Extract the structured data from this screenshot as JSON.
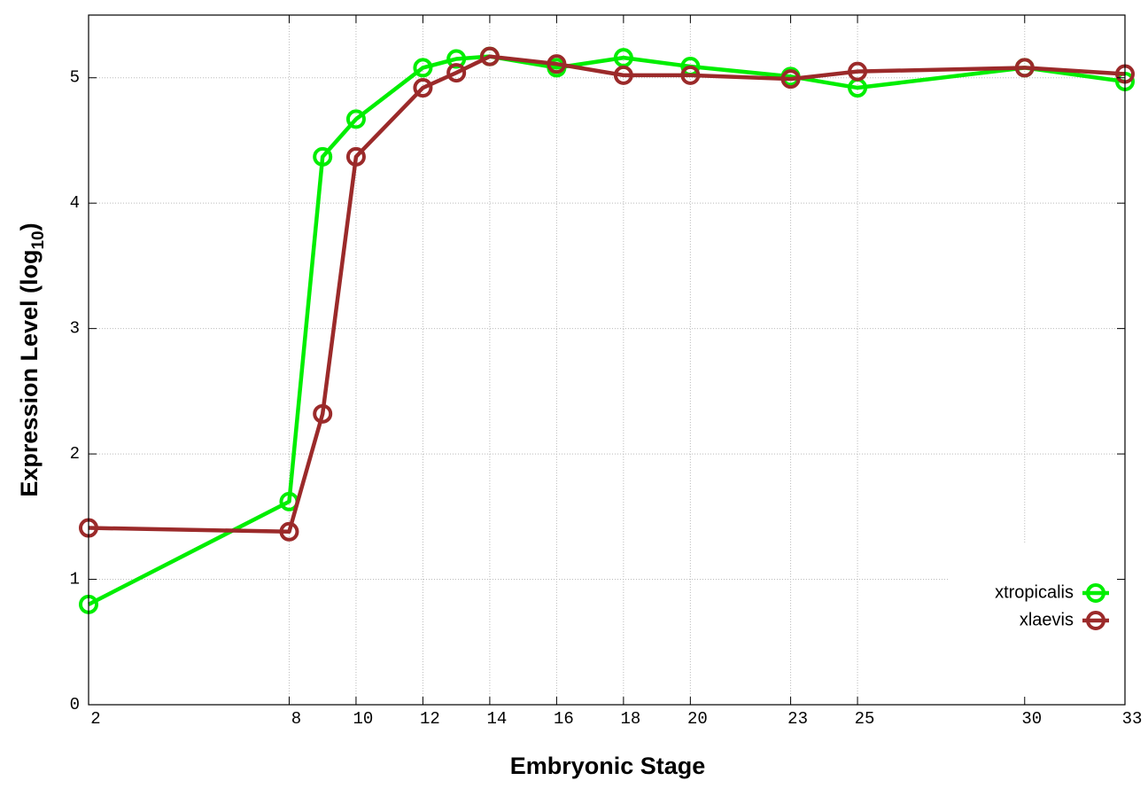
{
  "chart_data": {
    "type": "line",
    "x_label": "Embryonic Stage",
    "y_label": [
      "Expression Level (log",
      "10",
      ")"
    ],
    "x": [
      2,
      8,
      9,
      10,
      12,
      13,
      14,
      16,
      18,
      20,
      23,
      25,
      30,
      33
    ],
    "series": [
      {
        "name": "xtropicalis",
        "color": "#00ee00",
        "values": [
          0.8,
          1.62,
          4.37,
          4.67,
          5.08,
          5.15,
          5.17,
          5.08,
          5.16,
          5.09,
          5.01,
          4.92,
          5.08,
          4.97
        ]
      },
      {
        "name": "xlaevis",
        "color": "#9b2a2a",
        "values": [
          1.41,
          1.38,
          2.32,
          4.37,
          4.92,
          5.04,
          5.17,
          5.11,
          5.02,
          5.02,
          4.99,
          5.05,
          5.08,
          5.03
        ]
      }
    ],
    "xlim": [
      2,
      33
    ],
    "xticks": [
      2,
      8,
      10,
      12,
      14,
      16,
      18,
      20,
      23,
      25,
      30,
      33
    ],
    "ylim": [
      0,
      5.5
    ],
    "yticks": [
      0,
      1,
      2,
      3,
      4,
      5
    ],
    "grid": true,
    "legend": "bottom right"
  }
}
